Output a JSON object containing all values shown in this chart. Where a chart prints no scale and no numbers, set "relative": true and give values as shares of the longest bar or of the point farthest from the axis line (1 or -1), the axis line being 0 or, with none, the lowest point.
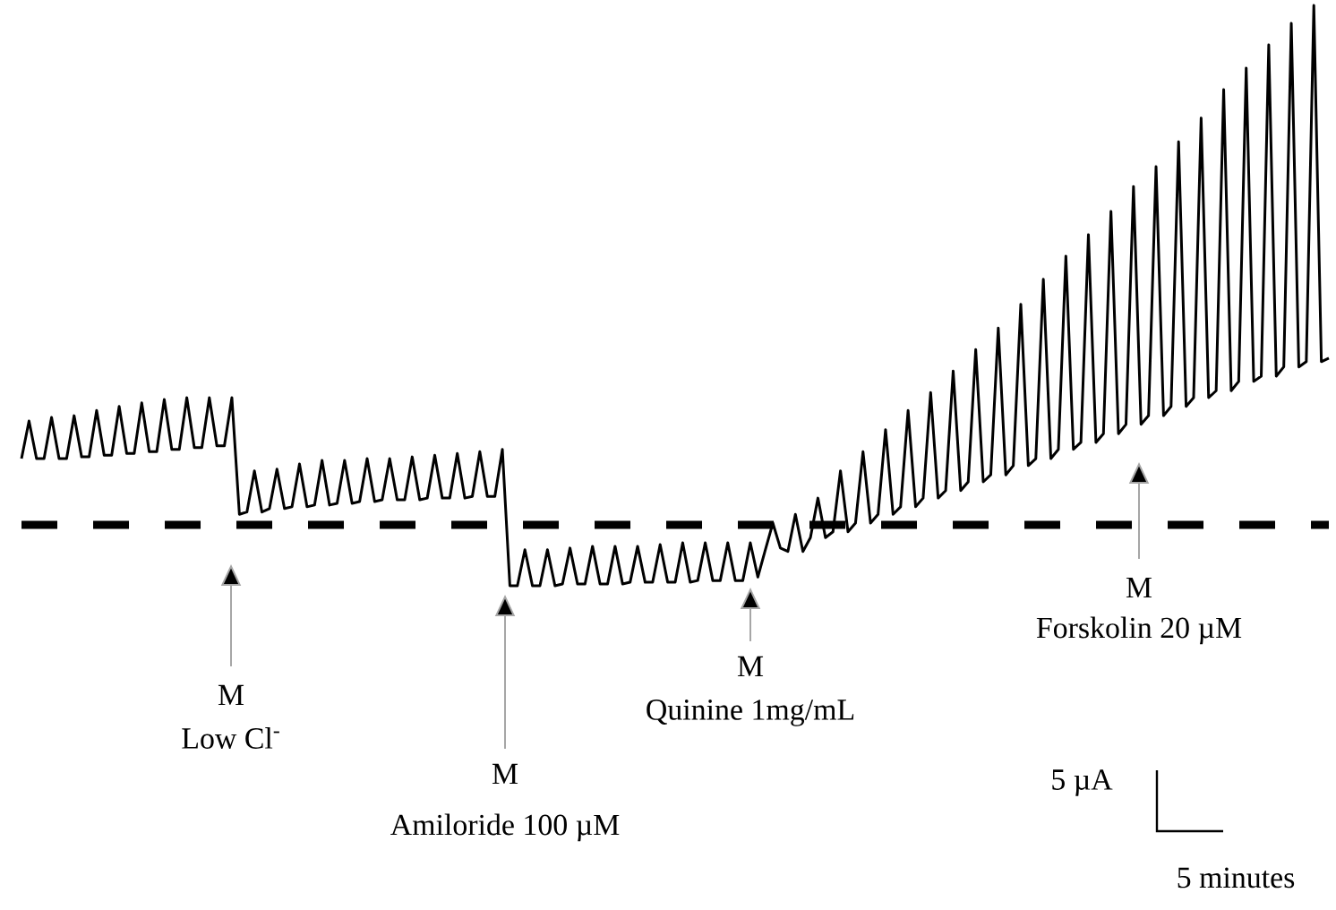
{
  "chart_data": {
    "type": "line",
    "relative": true,
    "color": "#000000",
    "line_style": "solid",
    "marker": "none",
    "categories": [
      null,
      null,
      null,
      null,
      null,
      null,
      null,
      null,
      null,
      null,
      null,
      null,
      null,
      null,
      null,
      null,
      null,
      null,
      null,
      null,
      null,
      null,
      null,
      null,
      null,
      null,
      null,
      null,
      null,
      null,
      null,
      null,
      null,
      null,
      null,
      null,
      null,
      null,
      null,
      null,
      null,
      null,
      null,
      null,
      null,
      null,
      null,
      null,
      null,
      null,
      null,
      null,
      null,
      null,
      null,
      null,
      null,
      null,
      null,
      null,
      null,
      null,
      null,
      null,
      null,
      null,
      null,
      null,
      null,
      null,
      null,
      null,
      null,
      null,
      null,
      null,
      null,
      null,
      null,
      null,
      null,
      null,
      null,
      null,
      null,
      null,
      null,
      null,
      null,
      null,
      null,
      null,
      null,
      null,
      null,
      null,
      null,
      null,
      null,
      null,
      null,
      null,
      null,
      null,
      null,
      null,
      null,
      null,
      null,
      null,
      null,
      null,
      null,
      null,
      null,
      null,
      null,
      null,
      null,
      null,
      null,
      null,
      null,
      null,
      null,
      null,
      null,
      null,
      null,
      null,
      null,
      null,
      null,
      null,
      null,
      null,
      null,
      null,
      null,
      null,
      null,
      null,
      null,
      null,
      null,
      null,
      null,
      null,
      null,
      null,
      null,
      null,
      null,
      null,
      null,
      null,
      null,
      null,
      null,
      null,
      null,
      null,
      null,
      null,
      null,
      null,
      null,
      null,
      null,
      null,
      null,
      null,
      null,
      null,
      null
    ],
    "values": [
      0.219,
      0.284,
      0.219,
      0.219,
      0.29,
      0.219,
      0.219,
      0.293,
      0.222,
      0.222,
      0.302,
      0.225,
      0.225,
      0.309,
      0.228,
      0.228,
      0.315,
      0.231,
      0.231,
      0.321,
      0.235,
      0.235,
      0.324,
      0.238,
      0.238,
      0.324,
      0.241,
      0.241,
      0.324,
      0.123,
      0.127,
      0.198,
      0.127,
      0.133,
      0.201,
      0.133,
      0.136,
      0.21,
      0.136,
      0.139,
      0.216,
      0.139,
      0.142,
      0.216,
      0.142,
      0.145,
      0.219,
      0.145,
      0.148,
      0.219,
      0.148,
      0.148,
      0.222,
      0.148,
      0.151,
      0.225,
      0.151,
      0.151,
      0.228,
      0.151,
      0.154,
      0.231,
      0.154,
      0.154,
      0.235,
      0,
      0,
      0.062,
      0,
      0,
      0.062,
      0,
      0.003,
      0.065,
      0.003,
      0.003,
      0.068,
      0.003,
      0.003,
      0.068,
      0.003,
      0.006,
      0.068,
      0.006,
      0.006,
      0.071,
      0.006,
      0.006,
      0.074,
      0.006,
      0.009,
      0.074,
      0.009,
      0.009,
      0.074,
      0.009,
      0.009,
      0.074,
      0.015,
      0.062,
      0.108,
      0.065,
      0.059,
      0.123,
      0.059,
      0.083,
      0.151,
      0.083,
      0.093,
      0.198,
      0.093,
      0.108,
      0.231,
      0.108,
      0.123,
      0.269,
      0.123,
      0.136,
      0.302,
      0.136,
      0.151,
      0.333,
      0.151,
      0.164,
      0.37,
      0.164,
      0.179,
      0.407,
      0.179,
      0.191,
      0.444,
      0.191,
      0.207,
      0.485,
      0.207,
      0.219,
      0.528,
      0.219,
      0.235,
      0.568,
      0.235,
      0.247,
      0.605,
      0.247,
      0.262,
      0.645,
      0.262,
      0.278,
      0.688,
      0.278,
      0.293,
      0.722,
      0.293,
      0.309,
      0.765,
      0.309,
      0.324,
      0.806,
      0.324,
      0.336,
      0.855,
      0.336,
      0.352,
      0.892,
      0.352,
      0.361,
      0.932,
      0.361,
      0.377,
      0.969,
      0.377,
      0.386,
      1.0,
      0.386,
      0.392
    ],
    "ref_lines": [
      {
        "axis": "y",
        "value": 0.105,
        "line_style": "dashed",
        "color": "#000000"
      }
    ],
    "annotations": [
      "M",
      "Low Cl$^{-}$",
      "M",
      "Amiloride 100 µM",
      "M",
      "Quinine 1mg/mL",
      "M",
      "Forskolin 20 µM",
      "5 µA",
      "5 minutes"
    ]
  }
}
